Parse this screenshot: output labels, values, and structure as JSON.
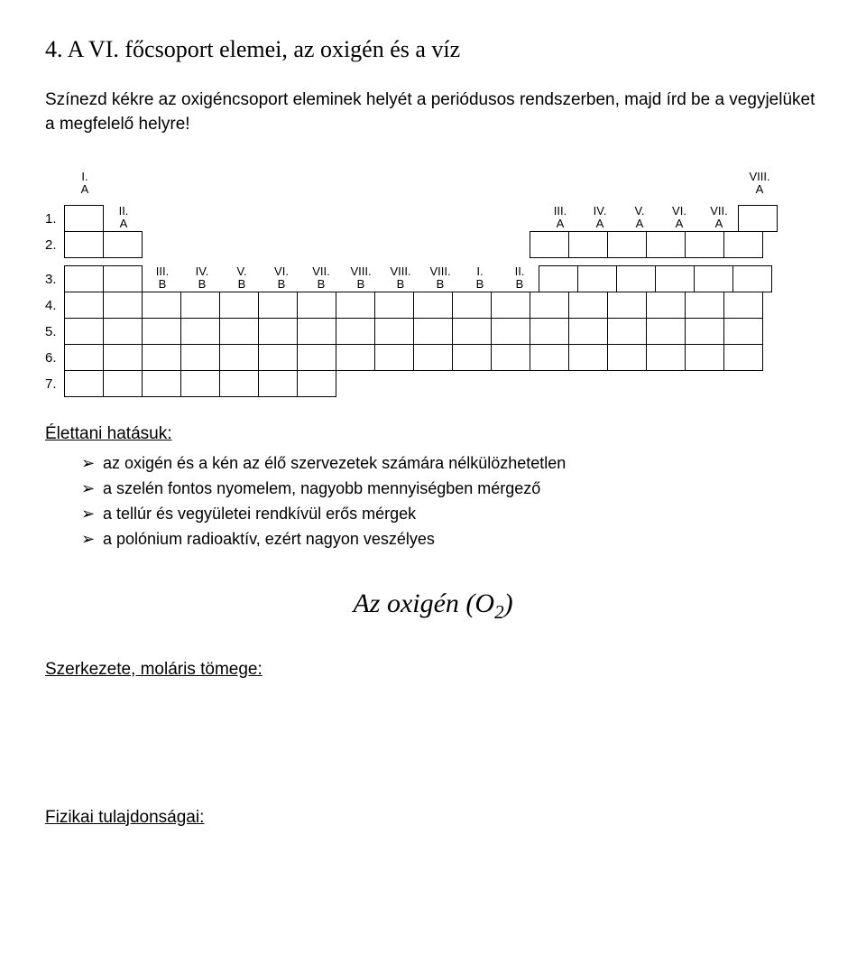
{
  "title": "4. A VI. főcsoport elemei, az oxigén és a víz",
  "intro": "Színezd kékre az oxigéncsoport eleminek helyét a periódusos rendszerben, majd írd be a vegyjelüket a megfelelő helyre!",
  "periodic": {
    "row_labels": [
      "1.",
      "2.",
      "3.",
      "4.",
      "5.",
      "6.",
      "7."
    ],
    "top_labels_A": {
      "IA": "I.\nA",
      "IIA": "II.\nA",
      "IIIA": "III.\nA",
      "IVA": "IV.\nA",
      "VA": "V.\nA",
      "VIA": "VI.\nA",
      "VIIA": "VII.\nA",
      "VIIIA": "VIII.\nA"
    },
    "top_labels_B": {
      "IIIB": "III.\nB",
      "IVB": "IV.\nB",
      "VB": "V.\nB",
      "VIB": "VI.\nB",
      "VIIB": "VII.\nB",
      "VIIIB1": "VIII.\nB",
      "VIIIB2": "VIII.\nB",
      "VIIIB3": "VIII.\nB",
      "IB": "I.\nB",
      "IIB": "II.\nB"
    }
  },
  "effects_head": "Élettani hatásuk:",
  "effects": [
    "az oxigén és a kén az élő szervezetek számára nélkülözhetetlen",
    "a szelén fontos nyomelem, nagyobb mennyiségben mérgező",
    "a tellúr és vegyületei rendkívül erős mérgek",
    "a polónium radioaktív, ezért nagyon veszélyes"
  ],
  "oxygen_heading_pre": "Az oxigén (O",
  "oxygen_heading_sub": "2",
  "oxygen_heading_post": ")",
  "structure_head": "Szerkezete, moláris tömege:",
  "physical_head": "Fizikai tulajdonságai:"
}
